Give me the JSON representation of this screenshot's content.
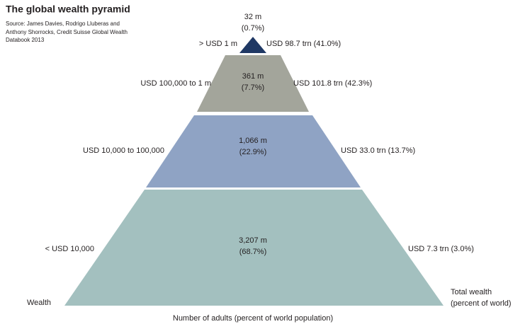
{
  "header": {
    "title": "The global wealth pyramid",
    "source": [
      "Source: James Davies, Rodrigo Lluberas and",
      "Anthony Shorrocks, Credit Suisse Global Wealth",
      "Databook 2013"
    ]
  },
  "tiers": [
    {
      "wealth_range": "> USD 1 m",
      "adults": "32 m",
      "adults_percent": "(0.7%)",
      "total_wealth": "USD 98.7 trn (41.0%)"
    },
    {
      "wealth_range": "USD 100,000 to 1 m",
      "adults": "361 m",
      "adults_percent": "(7.7%)",
      "total_wealth": "USD 101.8 trn (42.3%)"
    },
    {
      "wealth_range": "USD 10,000 to 100,000",
      "adults": "1,066 m",
      "adults_percent": "(22.9%)",
      "total_wealth": "USD 33.0 trn (13.7%)"
    },
    {
      "wealth_range": "< USD 10,000",
      "adults": "3,207 m",
      "adults_percent": "(68.7%)",
      "total_wealth": "USD 7.3 trn (3.0%)"
    }
  ],
  "labels": {
    "left": "Wealth",
    "right": [
      "Total wealth",
      "(percent of world)"
    ],
    "bottom": "Number of adults (percent of world population)"
  }
}
